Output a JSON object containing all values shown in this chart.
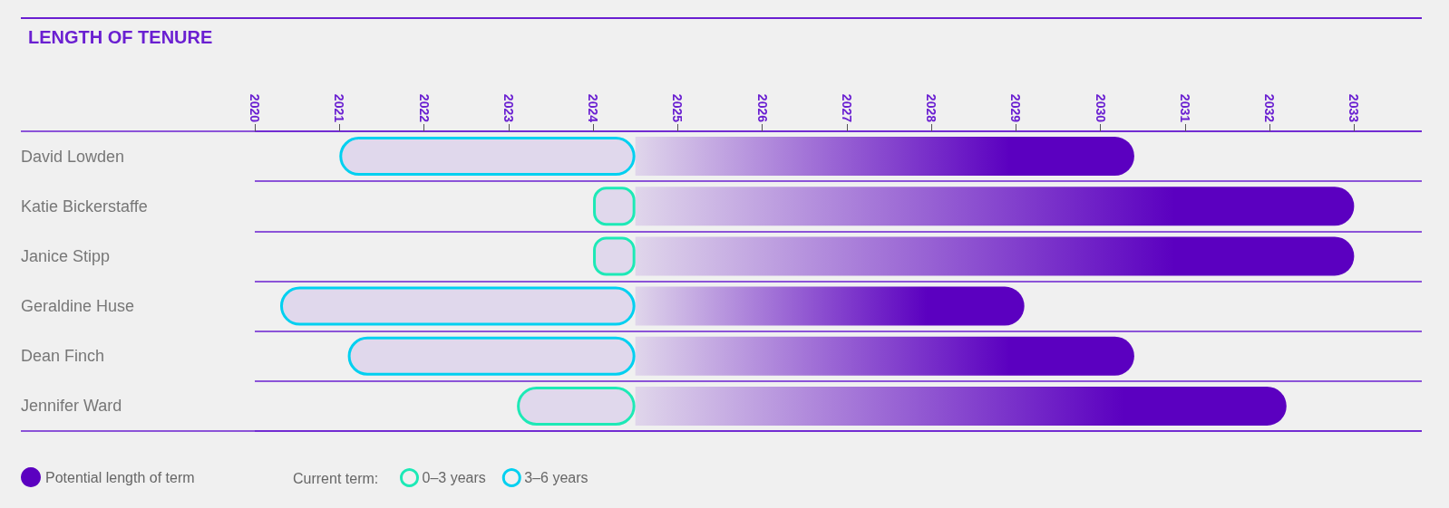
{
  "chart_data": {
    "type": "bar",
    "orientation": "horizontal",
    "title": "LENGTH OF TENURE",
    "legend_title": "Current term:",
    "categories": [
      "David Lowden",
      "Katie Bickerstaffe",
      "Janice Stipp",
      "Geraldine Huse",
      "Dean Finch",
      "Jennifer Ward"
    ],
    "series": [
      {
        "name": "Potential length of term",
        "color": "#5b00c0",
        "base": [
          2024.5,
          2024.5,
          2024.5,
          2024.5,
          2024.5,
          2024.5
        ],
        "values": [
          5.9,
          8.5,
          8.5,
          4.6,
          5.9,
          7.7
        ]
      },
      {
        "name": "0–3 years",
        "color": "#1de9b6",
        "base": [
          null,
          2024.0,
          2024.0,
          null,
          null,
          2023.1
        ],
        "values": [
          null,
          0.5,
          0.5,
          null,
          null,
          1.4
        ]
      },
      {
        "name": "3–6 years",
        "color": "#00d0f0",
        "base": [
          2021.0,
          null,
          null,
          2020.3,
          2021.1,
          null
        ],
        "values": [
          3.5,
          null,
          null,
          4.2,
          3.4,
          null
        ]
      }
    ],
    "xlim": [
      2020,
      2033.8
    ],
    "xticks": [
      2020,
      2021,
      2022,
      2023,
      2024,
      2025,
      2026,
      2027,
      2028,
      2029,
      2030,
      2031,
      2032,
      2033
    ],
    "grid": "y",
    "legend": "bottom left"
  }
}
